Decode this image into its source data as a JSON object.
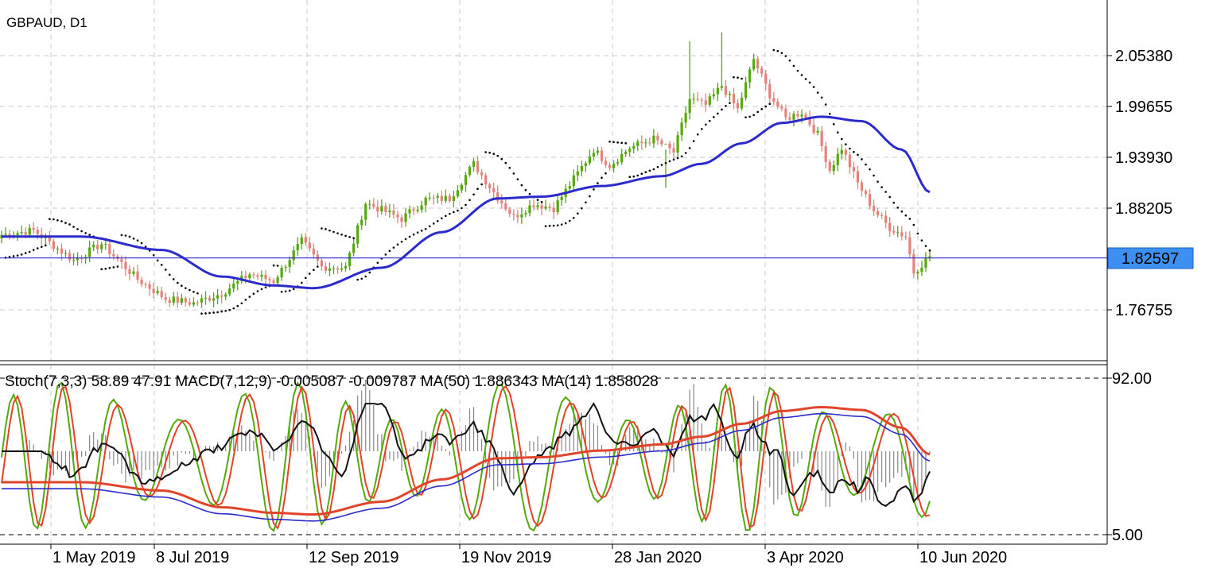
{
  "symbol_label": "GBPAUD, D1",
  "indicator_label": "Stoch(7,3,3) 58.89 47.91 MACD(7,12,9) -0.005087 -0.009787 MA(50) 1.886343 MA(14) 1.858028",
  "current_price_label": "1.82597",
  "colors": {
    "bull": "#56a80f",
    "bear": "#e3837c",
    "ma_main": "#2b2bcc",
    "psar": "#000000",
    "hline": "#2b2bcc",
    "price_tag_bg": "#3d8ff0",
    "stoch_main": "#56a80f",
    "stoch_signal": "#e0442a",
    "macd_hist": "#888888",
    "macd_signal": "#111111",
    "sub_ma_red": "#e0442a",
    "sub_ma_blue": "#2b2bcc",
    "grid": "#c8c8c8"
  },
  "chart_data": [
    {
      "type": "candlestick",
      "title": "GBPAUD, D1",
      "x_tick_labels": [
        "1 May 2019",
        "8 Jul 2019",
        "12 Sep 2019",
        "19 Nov 2019",
        "28 Jan 2020",
        "3 Apr 2020",
        "10 Jun 2020"
      ],
      "y_tick_labels": [
        "2.05380",
        "1.99655",
        "1.93930",
        "1.88205",
        "1.76755"
      ],
      "y_ticks": [
        2.0538,
        1.99655,
        1.9393,
        1.88205,
        1.76755
      ],
      "ylim": [
        1.71,
        2.115
      ],
      "current_price": 1.82597,
      "grid": true,
      "anchors": [
        {
          "i": 0,
          "c": 1.852
        },
        {
          "i": 8,
          "c": 1.857
        },
        {
          "i": 18,
          "c": 1.823
        },
        {
          "i": 25,
          "c": 1.842
        },
        {
          "i": 34,
          "c": 1.802
        },
        {
          "i": 41,
          "c": 1.78
        },
        {
          "i": 48,
          "c": 1.775
        },
        {
          "i": 55,
          "c": 1.786
        },
        {
          "i": 62,
          "c": 1.808
        },
        {
          "i": 68,
          "c": 1.8
        },
        {
          "i": 75,
          "c": 1.845
        },
        {
          "i": 80,
          "c": 1.816
        },
        {
          "i": 86,
          "c": 1.815
        },
        {
          "i": 91,
          "c": 1.888
        },
        {
          "i": 100,
          "c": 1.87
        },
        {
          "i": 106,
          "c": 1.892
        },
        {
          "i": 112,
          "c": 1.893
        },
        {
          "i": 118,
          "c": 1.932
        },
        {
          "i": 123,
          "c": 1.9
        },
        {
          "i": 128,
          "c": 1.872
        },
        {
          "i": 133,
          "c": 1.887
        },
        {
          "i": 138,
          "c": 1.882
        },
        {
          "i": 143,
          "c": 1.915
        },
        {
          "i": 148,
          "c": 1.948
        },
        {
          "i": 152,
          "c": 1.93
        },
        {
          "i": 157,
          "c": 1.95
        },
        {
          "i": 163,
          "c": 1.96
        },
        {
          "i": 168,
          "c": 1.945
        },
        {
          "i": 172,
          "c": 2.005
        },
        {
          "i": 176,
          "c": 1.998
        },
        {
          "i": 180,
          "c": 2.02
        },
        {
          "i": 184,
          "c": 1.993
        },
        {
          "i": 188,
          "c": 2.05
        },
        {
          "i": 192,
          "c": 2.01
        },
        {
          "i": 196,
          "c": 1.983
        },
        {
          "i": 200,
          "c": 1.99
        },
        {
          "i": 204,
          "c": 1.965
        },
        {
          "i": 207,
          "c": 1.925
        },
        {
          "i": 210,
          "c": 1.95
        },
        {
          "i": 214,
          "c": 1.91
        },
        {
          "i": 218,
          "c": 1.88
        },
        {
          "i": 222,
          "c": 1.86
        },
        {
          "i": 226,
          "c": 1.85
        },
        {
          "i": 228,
          "c": 1.81
        },
        {
          "i": 232,
          "c": 1.828
        }
      ],
      "ma50_anchors": [
        {
          "i": 0,
          "v": 1.85
        },
        {
          "i": 20,
          "v": 1.85
        },
        {
          "i": 40,
          "v": 1.835
        },
        {
          "i": 55,
          "v": 1.805
        },
        {
          "i": 68,
          "v": 1.795
        },
        {
          "i": 78,
          "v": 1.792
        },
        {
          "i": 95,
          "v": 1.815
        },
        {
          "i": 110,
          "v": 1.855
        },
        {
          "i": 124,
          "v": 1.893
        },
        {
          "i": 135,
          "v": 1.895
        },
        {
          "i": 150,
          "v": 1.907
        },
        {
          "i": 165,
          "v": 1.918
        },
        {
          "i": 175,
          "v": 1.932
        },
        {
          "i": 185,
          "v": 1.955
        },
        {
          "i": 195,
          "v": 1.978
        },
        {
          "i": 205,
          "v": 1.985
        },
        {
          "i": 215,
          "v": 1.98
        },
        {
          "i": 225,
          "v": 1.948
        },
        {
          "i": 232,
          "v": 1.9
        }
      ]
    },
    {
      "type": "line",
      "title": "Stoch(7,3,3) 58.89 47.91 MACD(7,12,9) -0.005087 -0.009787 MA(50) 1.886343 MA(14) 1.858028",
      "y_tick_labels": [
        "92.00",
        "5.00"
      ],
      "y_ticks": [
        92,
        5
      ],
      "ylim": [
        0,
        100
      ],
      "grid": true,
      "series": [
        {
          "name": "Stoch(7,3,3)",
          "last": 58.89
        },
        {
          "name": "Stoch(7,3,3)",
          "last": 47.91
        },
        {
          "name": "MACD(7,12,9)",
          "last": -0.005087
        },
        {
          "name": "MACD(7,12,9)",
          "last": -0.009787
        },
        {
          "name": "MA(50)",
          "last": 1.886343
        },
        {
          "name": "MA(14)",
          "last": 1.858028
        }
      ]
    }
  ]
}
